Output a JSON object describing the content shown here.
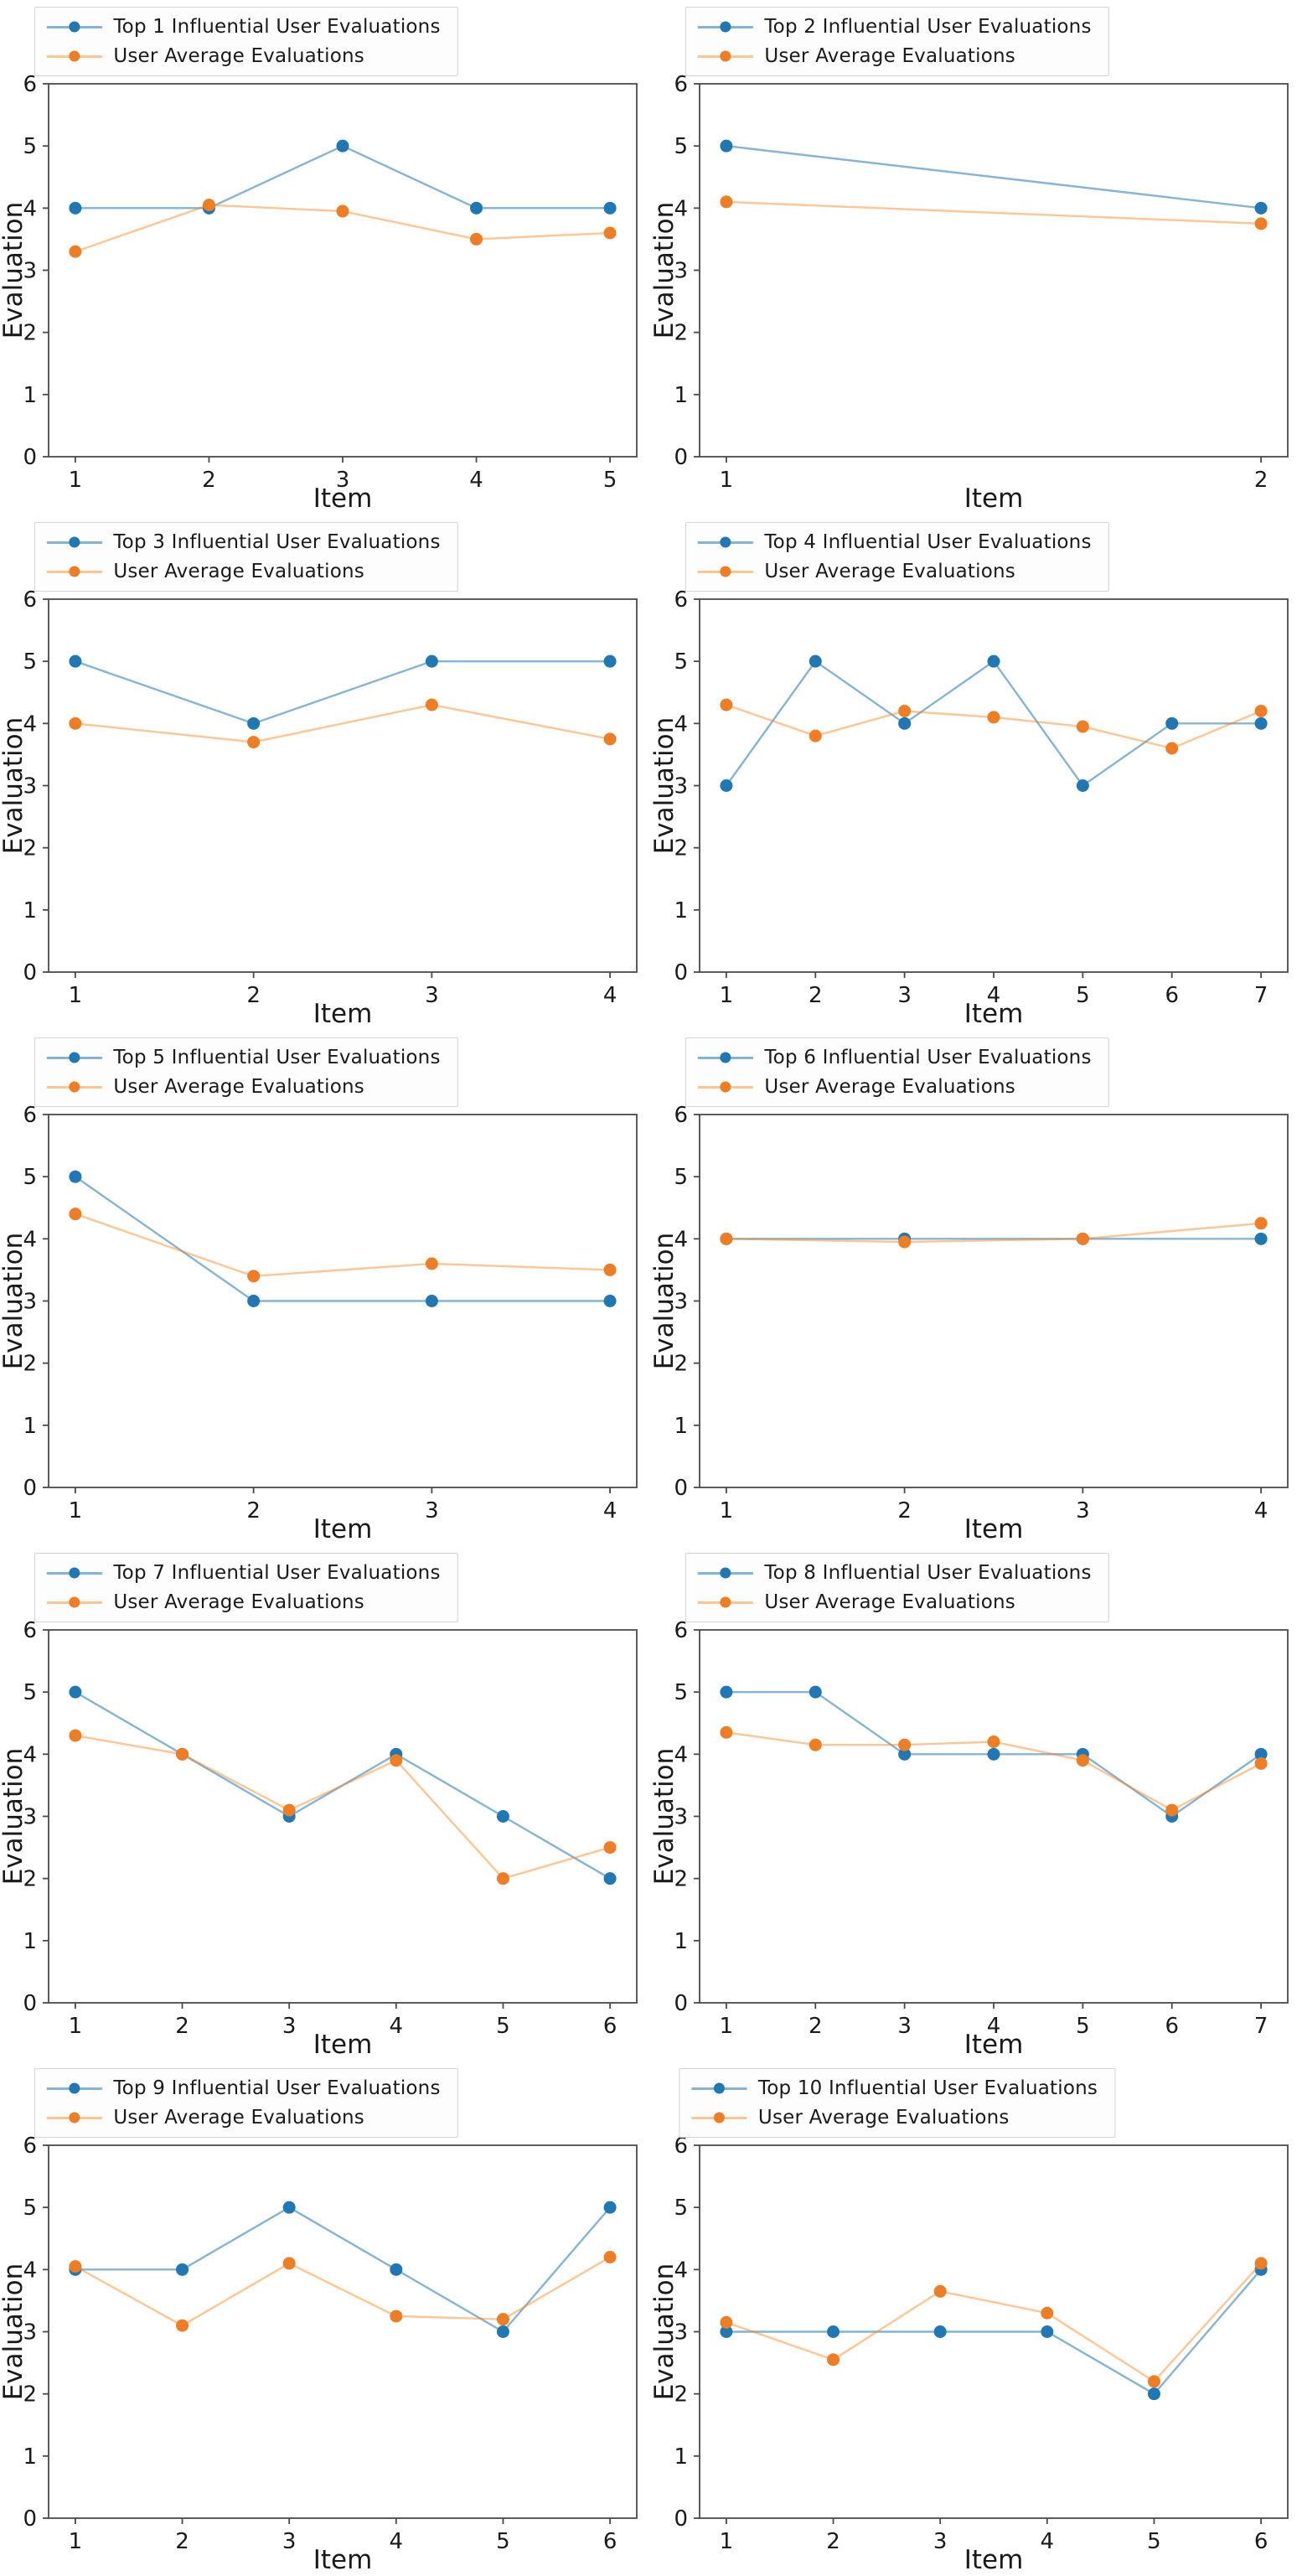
{
  "page": {
    "background": "#ffffff"
  },
  "colors": {
    "top_marker": "#1f77b4",
    "top_line": "rgba(31,119,180,0.55)",
    "avg_marker": "#ee7d23",
    "avg_line": "rgba(255,127,14,0.45)",
    "axis": "#4a4a4a",
    "tick_text": "#1a1a1a",
    "legend_border": "#d4d4d4",
    "legend_bg": "#fdfdfd"
  },
  "axes": {
    "xlabel": "Item",
    "ylabel": "Evaluation",
    "ylim": [
      0,
      6
    ],
    "yticks": [
      0,
      1,
      2,
      3,
      4,
      5,
      6
    ],
    "grid": false,
    "legend_position": "top-center"
  },
  "chart_data": [
    {
      "type": "line",
      "x": [
        1,
        2,
        3,
        4,
        5
      ],
      "series": [
        {
          "name": "Top 1 Influential User Evaluations",
          "color_key": "top",
          "values": [
            4,
            4,
            5,
            4,
            4
          ]
        },
        {
          "name": "User Average Evaluations",
          "color_key": "avg",
          "values": [
            3.3,
            4.05,
            3.95,
            3.5,
            3.6
          ]
        }
      ]
    },
    {
      "type": "line",
      "x": [
        1,
        2
      ],
      "series": [
        {
          "name": "Top 2 Influential User Evaluations",
          "color_key": "top",
          "values": [
            5,
            4
          ]
        },
        {
          "name": "User Average Evaluations",
          "color_key": "avg",
          "values": [
            4.1,
            3.75
          ]
        }
      ]
    },
    {
      "type": "line",
      "x": [
        1,
        2,
        3,
        4
      ],
      "series": [
        {
          "name": "Top 3 Influential User Evaluations",
          "color_key": "top",
          "values": [
            5,
            4,
            5,
            5
          ]
        },
        {
          "name": "User Average Evaluations",
          "color_key": "avg",
          "values": [
            4.0,
            3.7,
            4.3,
            3.75
          ]
        }
      ]
    },
    {
      "type": "line",
      "x": [
        1,
        2,
        3,
        4,
        5,
        6,
        7
      ],
      "series": [
        {
          "name": "Top 4 Influential User Evaluations",
          "color_key": "top",
          "values": [
            3,
            5,
            4,
            5,
            3,
            4,
            4
          ]
        },
        {
          "name": "User Average Evaluations",
          "color_key": "avg",
          "values": [
            4.3,
            3.8,
            4.2,
            4.1,
            3.95,
            3.6,
            4.2
          ]
        }
      ]
    },
    {
      "type": "line",
      "x": [
        1,
        2,
        3,
        4
      ],
      "series": [
        {
          "name": "Top 5 Influential User Evaluations",
          "color_key": "top",
          "values": [
            5,
            3,
            3,
            3
          ]
        },
        {
          "name": "User Average Evaluations",
          "color_key": "avg",
          "values": [
            4.4,
            3.4,
            3.6,
            3.5
          ]
        }
      ]
    },
    {
      "type": "line",
      "x": [
        1,
        2,
        3,
        4
      ],
      "series": [
        {
          "name": "Top 6 Influential User Evaluations",
          "color_key": "top",
          "values": [
            4,
            4,
            4,
            4
          ]
        },
        {
          "name": "User Average Evaluations",
          "color_key": "avg",
          "values": [
            4.0,
            3.95,
            4.0,
            4.25
          ]
        }
      ]
    },
    {
      "type": "line",
      "x": [
        1,
        2,
        3,
        4,
        5,
        6
      ],
      "series": [
        {
          "name": "Top 7 Influential User Evaluations",
          "color_key": "top",
          "values": [
            5,
            4,
            3,
            4,
            3,
            2
          ]
        },
        {
          "name": "User Average Evaluations",
          "color_key": "avg",
          "values": [
            4.3,
            4.0,
            3.1,
            3.9,
            2.0,
            2.5
          ]
        }
      ]
    },
    {
      "type": "line",
      "x": [
        1,
        2,
        3,
        4,
        5,
        6,
        7
      ],
      "series": [
        {
          "name": "Top 8 Influential User Evaluations",
          "color_key": "top",
          "values": [
            5,
            5,
            4,
            4,
            4,
            3,
            4
          ]
        },
        {
          "name": "User Average Evaluations",
          "color_key": "avg",
          "values": [
            4.35,
            4.15,
            4.15,
            4.2,
            3.9,
            3.1,
            3.85
          ]
        }
      ]
    },
    {
      "type": "line",
      "x": [
        1,
        2,
        3,
        4,
        5,
        6
      ],
      "series": [
        {
          "name": "Top 9 Influential User Evaluations",
          "color_key": "top",
          "values": [
            4,
            4,
            5,
            4,
            3,
            5
          ]
        },
        {
          "name": "User Average Evaluations",
          "color_key": "avg",
          "values": [
            4.05,
            3.1,
            4.1,
            3.25,
            3.2,
            4.2
          ]
        }
      ]
    },
    {
      "type": "line",
      "x": [
        1,
        2,
        3,
        4,
        5,
        6
      ],
      "series": [
        {
          "name": "Top 10 Influential User Evaluations",
          "color_key": "top",
          "values": [
            3,
            3,
            3,
            3,
            2,
            4
          ]
        },
        {
          "name": "User Average Evaluations",
          "color_key": "avg",
          "values": [
            3.15,
            2.55,
            3.65,
            3.3,
            2.2,
            4.1
          ]
        }
      ]
    }
  ]
}
